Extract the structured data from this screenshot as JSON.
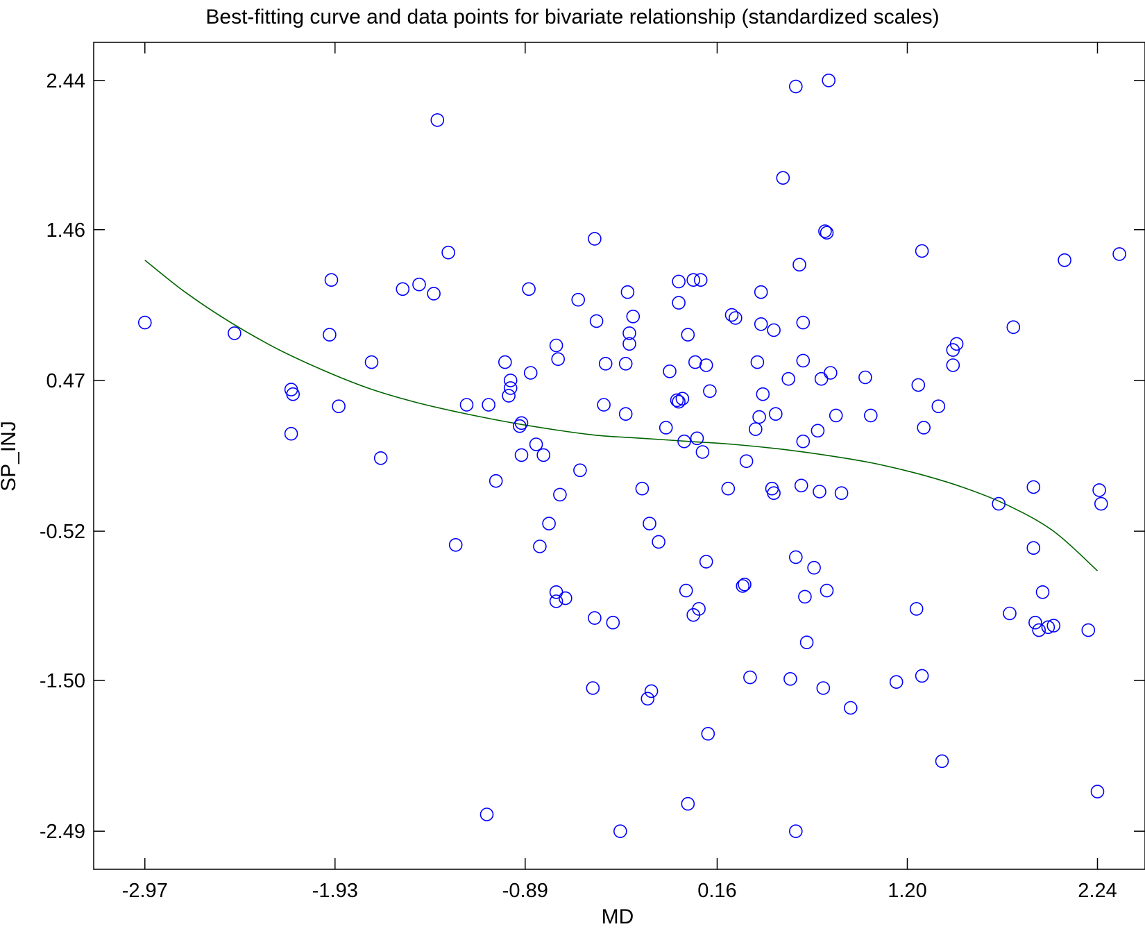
{
  "chart_data": {
    "type": "scatter",
    "title": "Best-fitting curve and data points for bivariate relationship (standardized scales)",
    "xlabel": "MD",
    "ylabel": "SP_INJ",
    "xlim": [
      -3.25,
      2.5
    ],
    "ylim": [
      -2.74,
      2.69
    ],
    "xticks": [
      "-2.97",
      "-1.93",
      "-0.89",
      "0.16",
      "1.20",
      "2.24"
    ],
    "yticks": [
      "2.44",
      "1.46",
      "0.47",
      "-0.52",
      "-1.50",
      "-2.49"
    ],
    "colors": {
      "points": "#0000ff",
      "curve": "#006400",
      "frame": "#000000"
    },
    "series": [
      {
        "name": "data points",
        "kind": "scatter",
        "points": [
          [
            -2.97,
            0.85
          ],
          [
            -2.48,
            0.78
          ],
          [
            -2.17,
            0.41
          ],
          [
            -2.16,
            0.38
          ],
          [
            -2.17,
            0.12
          ],
          [
            -1.95,
            1.13
          ],
          [
            -1.96,
            0.77
          ],
          [
            -1.91,
            0.3
          ],
          [
            -1.73,
            0.59
          ],
          [
            -1.68,
            -0.04
          ],
          [
            -1.56,
            1.07
          ],
          [
            -1.47,
            1.1
          ],
          [
            -1.39,
            1.04
          ],
          [
            -1.37,
            2.18
          ],
          [
            -1.31,
            1.31
          ],
          [
            -1.27,
            -0.61
          ],
          [
            -1.21,
            0.31
          ],
          [
            -1.1,
            -2.38
          ],
          [
            -1.09,
            0.31
          ],
          [
            -1.05,
            -0.19
          ],
          [
            -1.0,
            0.59
          ],
          [
            -0.97,
            0.42
          ],
          [
            -0.97,
            0.47
          ],
          [
            -0.98,
            0.37
          ],
          [
            -0.92,
            0.17
          ],
          [
            -0.91,
            0.19
          ],
          [
            -0.91,
            -0.02
          ],
          [
            -0.87,
            1.07
          ],
          [
            -0.86,
            0.52
          ],
          [
            -0.83,
            0.05
          ],
          [
            -0.81,
            -0.62
          ],
          [
            -0.79,
            -0.02
          ],
          [
            -0.76,
            -0.47
          ],
          [
            -0.72,
            0.7
          ],
          [
            -0.71,
            0.61
          ],
          [
            -0.7,
            -0.28
          ],
          [
            -0.72,
            -0.92
          ],
          [
            -0.72,
            -0.98
          ],
          [
            -0.67,
            -0.96
          ],
          [
            -0.6,
            1.0
          ],
          [
            -0.59,
            -0.12
          ],
          [
            -0.51,
            1.4
          ],
          [
            -0.5,
            0.86
          ],
          [
            -0.51,
            -1.09
          ],
          [
            -0.52,
            -1.55
          ],
          [
            -0.45,
            0.58
          ],
          [
            -0.46,
            0.31
          ],
          [
            -0.41,
            -1.12
          ],
          [
            -0.37,
            -2.49
          ],
          [
            -0.34,
            0.58
          ],
          [
            -0.34,
            0.25
          ],
          [
            -0.33,
            1.05
          ],
          [
            -0.32,
            0.78
          ],
          [
            -0.32,
            0.71
          ],
          [
            -0.3,
            0.89
          ],
          [
            -0.25,
            -0.24
          ],
          [
            -0.21,
            -0.47
          ],
          [
            -0.22,
            -1.62
          ],
          [
            -0.2,
            -1.57
          ],
          [
            -0.16,
            -0.59
          ],
          [
            -0.12,
            0.16
          ],
          [
            -0.1,
            0.53
          ],
          [
            -0.06,
            0.34
          ],
          [
            -0.05,
            0.33
          ],
          [
            -0.05,
            1.12
          ],
          [
            -0.05,
            0.98
          ],
          [
            -0.03,
            0.35
          ],
          [
            -0.02,
            0.07
          ],
          [
            -0.01,
            -0.91
          ],
          [
            0.0,
            0.77
          ],
          [
            0.0,
            -2.31
          ],
          [
            0.03,
            1.13
          ],
          [
            0.03,
            -1.07
          ],
          [
            0.04,
            0.59
          ],
          [
            0.05,
            0.09
          ],
          [
            0.06,
            -1.03
          ],
          [
            0.07,
            1.13
          ],
          [
            0.08,
            0.0
          ],
          [
            0.1,
            0.57
          ],
          [
            0.1,
            -0.72
          ],
          [
            0.11,
            -1.85
          ],
          [
            0.12,
            0.4
          ],
          [
            0.22,
            -0.24
          ],
          [
            0.24,
            0.9
          ],
          [
            0.26,
            0.88
          ],
          [
            0.3,
            -0.88
          ],
          [
            0.31,
            -0.87
          ],
          [
            0.32,
            -0.06
          ],
          [
            0.34,
            -1.48
          ],
          [
            0.37,
            0.15
          ],
          [
            0.38,
            0.59
          ],
          [
            0.39,
            0.23
          ],
          [
            0.4,
            0.84
          ],
          [
            0.4,
            1.05
          ],
          [
            0.41,
            0.38
          ],
          [
            0.46,
            -0.24
          ],
          [
            0.47,
            -0.27
          ],
          [
            0.47,
            0.8
          ],
          [
            0.48,
            0.25
          ],
          [
            0.52,
            1.8
          ],
          [
            0.55,
            0.48
          ],
          [
            0.56,
            -1.49
          ],
          [
            0.59,
            -0.69
          ],
          [
            0.59,
            2.4
          ],
          [
            0.59,
            -2.49
          ],
          [
            0.61,
            1.23
          ],
          [
            0.62,
            -0.22
          ],
          [
            0.63,
            0.07
          ],
          [
            0.63,
            0.6
          ],
          [
            0.63,
            0.85
          ],
          [
            0.64,
            -0.95
          ],
          [
            0.65,
            -1.25
          ],
          [
            0.69,
            -0.76
          ],
          [
            0.71,
            0.14
          ],
          [
            0.72,
            -0.26
          ],
          [
            0.73,
            0.48
          ],
          [
            0.74,
            -1.55
          ],
          [
            0.75,
            1.45
          ],
          [
            0.76,
            1.44
          ],
          [
            0.76,
            -0.91
          ],
          [
            0.77,
            2.44
          ],
          [
            0.78,
            0.52
          ],
          [
            0.81,
            0.24
          ],
          [
            0.84,
            -0.27
          ],
          [
            0.89,
            -1.68
          ],
          [
            0.97,
            0.49
          ],
          [
            1.0,
            0.24
          ],
          [
            1.14,
            -1.51
          ],
          [
            1.26,
            0.44
          ],
          [
            1.25,
            -1.03
          ],
          [
            1.28,
            1.32
          ],
          [
            1.28,
            -1.47
          ],
          [
            1.29,
            0.16
          ],
          [
            1.37,
            0.3
          ],
          [
            1.39,
            -2.03
          ],
          [
            1.45,
            0.57
          ],
          [
            1.45,
            0.67
          ],
          [
            1.47,
            0.71
          ],
          [
            1.7,
            -0.34
          ],
          [
            1.76,
            -1.06
          ],
          [
            1.78,
            0.82
          ],
          [
            1.89,
            -0.23
          ],
          [
            1.89,
            -0.63
          ],
          [
            1.9,
            -1.12
          ],
          [
            1.92,
            -1.17
          ],
          [
            1.94,
            -0.92
          ],
          [
            1.97,
            -1.15
          ],
          [
            2.0,
            -1.14
          ],
          [
            2.06,
            1.26
          ],
          [
            2.19,
            -1.17
          ],
          [
            2.25,
            -0.25
          ],
          [
            2.26,
            -0.34
          ],
          [
            2.36,
            1.3
          ],
          [
            2.24,
            -2.23
          ]
        ]
      },
      {
        "name": "best-fitting curve",
        "kind": "line",
        "x": [
          -2.97,
          -2.75,
          -2.5,
          -2.25,
          -2.0,
          -1.75,
          -1.5,
          -1.25,
          -1.0,
          -0.75,
          -0.5,
          -0.25,
          0.0,
          0.25,
          0.5,
          0.75,
          1.0,
          1.25,
          1.5,
          1.75,
          2.0,
          2.24
        ],
        "y": [
          1.26,
          1.05,
          0.85,
          0.68,
          0.54,
          0.42,
          0.33,
          0.26,
          0.2,
          0.15,
          0.11,
          0.09,
          0.07,
          0.05,
          0.02,
          -0.02,
          -0.07,
          -0.14,
          -0.23,
          -0.35,
          -0.52,
          -0.78
        ]
      }
    ]
  }
}
